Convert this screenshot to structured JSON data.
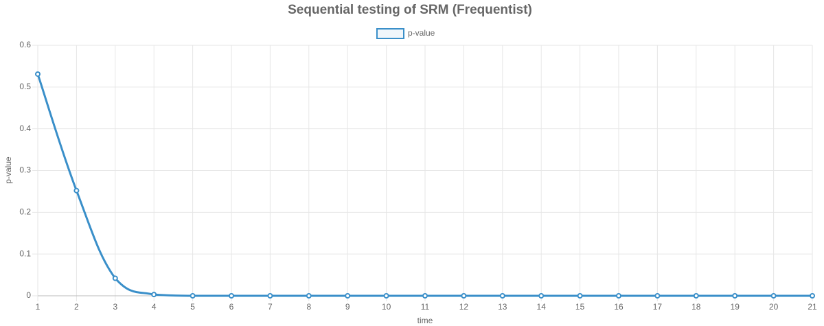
{
  "chart_data": {
    "type": "line",
    "title": "Sequential testing of SRM (Frequentist)",
    "x_label": "time",
    "y_label": "p-value",
    "x": [
      1,
      2,
      3,
      4,
      5,
      6,
      7,
      8,
      9,
      10,
      11,
      12,
      13,
      14,
      15,
      16,
      17,
      18,
      19,
      20,
      21
    ],
    "xlim": [
      1,
      21
    ],
    "xticks": [
      1,
      2,
      3,
      4,
      5,
      6,
      7,
      8,
      9,
      10,
      11,
      12,
      13,
      14,
      15,
      16,
      17,
      18,
      19,
      20,
      21
    ],
    "ylim": [
      0,
      0.6
    ],
    "yticks": [
      0,
      0.1,
      0.2,
      0.3,
      0.4,
      0.5,
      0.6
    ],
    "grid": true,
    "legend": "top",
    "series": [
      {
        "name": "p-value",
        "color": "#3a8fc9",
        "values": [
          0.531,
          0.252,
          0.042,
          0.003,
          0,
          0,
          0,
          0,
          0,
          0,
          0,
          0,
          0,
          0,
          0,
          0,
          0,
          0,
          0,
          0,
          0
        ]
      }
    ]
  }
}
